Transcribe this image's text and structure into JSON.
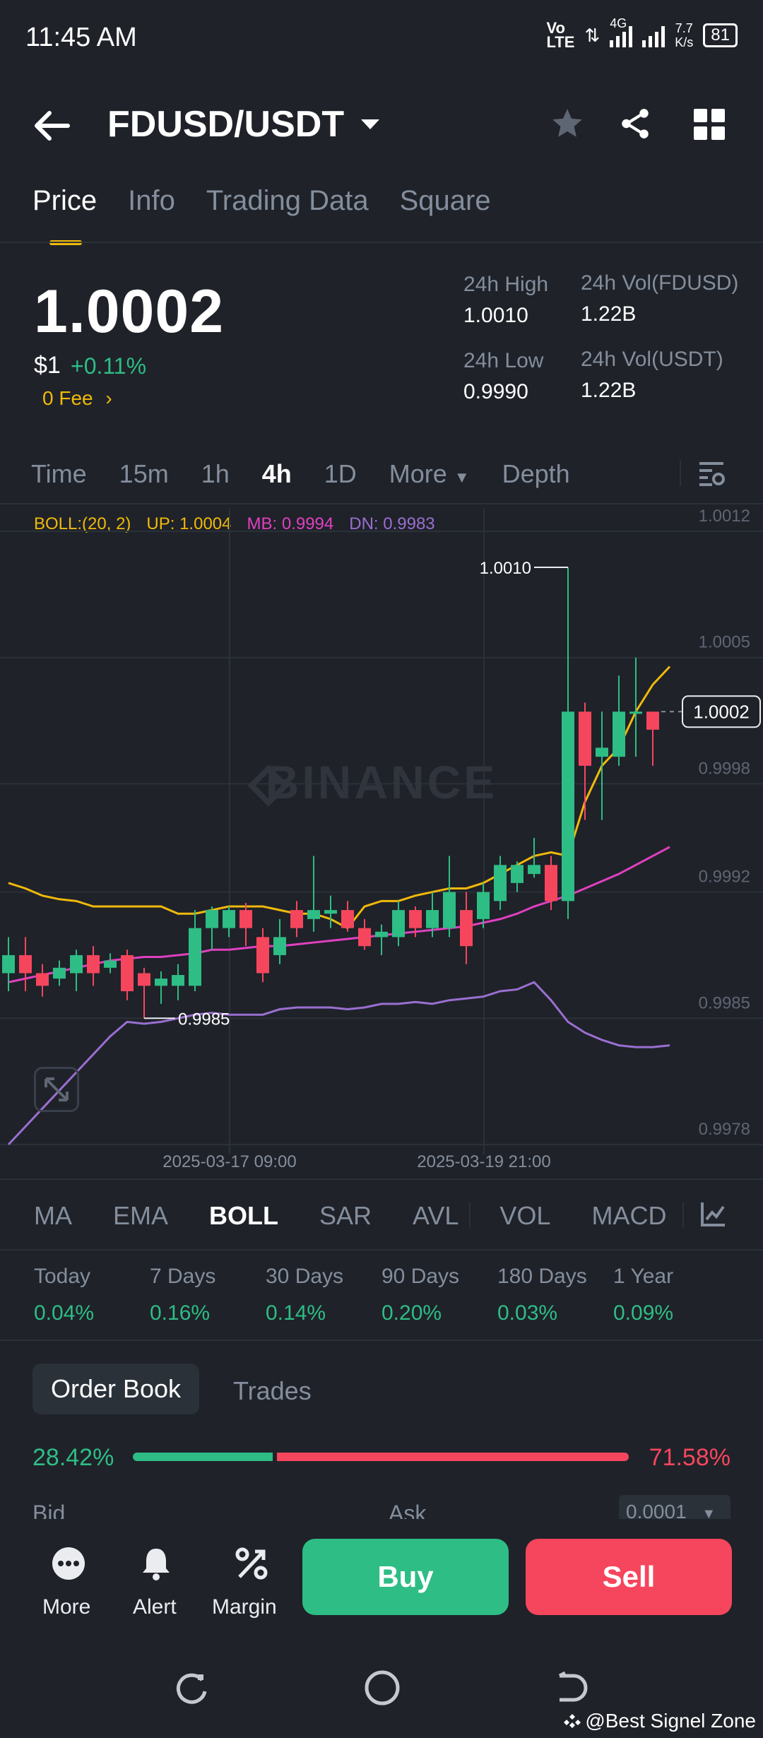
{
  "status_bar": {
    "time": "11:45 AM",
    "network": "Vo LTE",
    "net_type": "4G",
    "speed_value": "7.7",
    "speed_unit": "K/s",
    "battery": "81"
  },
  "header": {
    "pair": "FDUSD/USDT"
  },
  "tabs": [
    "Price",
    "Info",
    "Trading Data",
    "Square"
  ],
  "price_block": {
    "last": "1.0002",
    "usd": "$1",
    "change": "+0.11%",
    "fee": "0 Fee",
    "high_label": "24h High",
    "high": "1.0010",
    "low_label": "24h Low",
    "low": "0.9990",
    "vol_base_label": "24h Vol(FDUSD)",
    "vol_base": "1.22B",
    "vol_quote_label": "24h Vol(USDT)",
    "vol_quote": "1.22B"
  },
  "intervals": {
    "items": [
      "Time",
      "15m",
      "1h",
      "4h",
      "1D",
      "More",
      "Depth"
    ],
    "active": "4h"
  },
  "boll_legend": {
    "name": "BOLL:(20, 2)",
    "up": "UP: 1.0004",
    "mb": "MB: 0.9994",
    "dn": "DN: 0.9983"
  },
  "chart_data": {
    "type": "candlestick",
    "y_ticks": [
      "1.0012",
      "1.0005",
      "0.9998",
      "0.9992",
      "0.9985",
      "0.9978"
    ],
    "ylim": [
      0.9978,
      1.0012
    ],
    "x_ticks": [
      "2025-03-17 09:00",
      "2025-03-19 21:00"
    ],
    "current_price_tag": "1.0002",
    "high_marker": "1.0010",
    "low_marker": "0.9985",
    "watermark": "BINANCE",
    "candles": [
      {
        "o": 0.99875,
        "c": 0.99885,
        "h": 0.99895,
        "l": 0.99865
      },
      {
        "o": 0.99885,
        "c": 0.99875,
        "h": 0.99895,
        "l": 0.99865
      },
      {
        "o": 0.99875,
        "c": 0.99868,
        "h": 0.9988,
        "l": 0.99862
      },
      {
        "o": 0.99872,
        "c": 0.99878,
        "h": 0.99882,
        "l": 0.99868
      },
      {
        "o": 0.99875,
        "c": 0.99885,
        "h": 0.99888,
        "l": 0.99865
      },
      {
        "o": 0.99885,
        "c": 0.99875,
        "h": 0.9989,
        "l": 0.99868
      },
      {
        "o": 0.99878,
        "c": 0.99882,
        "h": 0.99886,
        "l": 0.99875
      },
      {
        "o": 0.99885,
        "c": 0.99865,
        "h": 0.99888,
        "l": 0.9986
      },
      {
        "o": 0.99875,
        "c": 0.99868,
        "h": 0.99878,
        "l": 0.9985
      },
      {
        "o": 0.99868,
        "c": 0.99872,
        "h": 0.99876,
        "l": 0.99858
      },
      {
        "o": 0.99868,
        "c": 0.99874,
        "h": 0.9988,
        "l": 0.9986
      },
      {
        "o": 0.99868,
        "c": 0.999,
        "h": 0.9991,
        "l": 0.99865
      },
      {
        "o": 0.999,
        "c": 0.9991,
        "h": 0.99912,
        "l": 0.99888
      },
      {
        "o": 0.999,
        "c": 0.9991,
        "h": 0.99912,
        "l": 0.99895
      },
      {
        "o": 0.9991,
        "c": 0.999,
        "h": 0.99914,
        "l": 0.9989
      },
      {
        "o": 0.99895,
        "c": 0.99875,
        "h": 0.999,
        "l": 0.9987
      },
      {
        "o": 0.99885,
        "c": 0.99895,
        "h": 0.99905,
        "l": 0.9988
      },
      {
        "o": 0.9991,
        "c": 0.999,
        "h": 0.99915,
        "l": 0.99895
      },
      {
        "o": 0.99905,
        "c": 0.9991,
        "h": 0.9994,
        "l": 0.99898
      },
      {
        "o": 0.99908,
        "c": 0.9991,
        "h": 0.99918,
        "l": 0.999
      },
      {
        "o": 0.9991,
        "c": 0.999,
        "h": 0.99915,
        "l": 0.99898
      },
      {
        "o": 0.999,
        "c": 0.9989,
        "h": 0.99905,
        "l": 0.99888
      },
      {
        "o": 0.99895,
        "c": 0.99898,
        "h": 0.99902,
        "l": 0.99885
      },
      {
        "o": 0.99895,
        "c": 0.9991,
        "h": 0.99915,
        "l": 0.9989
      },
      {
        "o": 0.9991,
        "c": 0.999,
        "h": 0.99912,
        "l": 0.99895
      },
      {
        "o": 0.999,
        "c": 0.9991,
        "h": 0.9992,
        "l": 0.99895
      },
      {
        "o": 0.999,
        "c": 0.9992,
        "h": 0.9994,
        "l": 0.99895
      },
      {
        "o": 0.9991,
        "c": 0.9989,
        "h": 0.9992,
        "l": 0.9988
      },
      {
        "o": 0.99905,
        "c": 0.9992,
        "h": 0.99925,
        "l": 0.999
      },
      {
        "o": 0.99915,
        "c": 0.99935,
        "h": 0.9994,
        "l": 0.9991
      },
      {
        "o": 0.99925,
        "c": 0.99935,
        "h": 0.99937,
        "l": 0.9992
      },
      {
        "o": 0.9993,
        "c": 0.99935,
        "h": 0.9995,
        "l": 0.99928
      },
      {
        "o": 0.99935,
        "c": 0.99915,
        "h": 0.9994,
        "l": 0.9991
      },
      {
        "o": 0.99915,
        "c": 1.0002,
        "h": 1.001,
        "l": 0.99905
      },
      {
        "o": 1.0002,
        "c": 0.9999,
        "h": 1.00025,
        "l": 0.9996
      },
      {
        "o": 0.99995,
        "c": 1.0,
        "h": 1.0002,
        "l": 0.9996
      },
      {
        "o": 0.99995,
        "c": 1.0002,
        "h": 1.0004,
        "l": 0.9999
      },
      {
        "o": 1.0002,
        "c": 1.0002,
        "h": 1.0005,
        "l": 0.99995
      },
      {
        "o": 1.0002,
        "c": 1.0001,
        "h": 1.0002,
        "l": 0.9999
      }
    ],
    "boll_up": [
      0.99925,
      0.99922,
      0.99918,
      0.99916,
      0.99915,
      0.99912,
      0.99912,
      0.99912,
      0.99912,
      0.99912,
      0.99908,
      0.99908,
      0.9991,
      0.99912,
      0.99912,
      0.99912,
      0.9991,
      0.99908,
      0.99908,
      0.99905,
      0.999,
      0.99912,
      0.99915,
      0.99915,
      0.99918,
      0.9992,
      0.99922,
      0.99922,
      0.99925,
      0.9993,
      0.99935,
      0.9994,
      0.99942,
      0.9994,
      0.9997,
      0.9999,
      1.0,
      1.0002,
      1.00035,
      1.00045
    ],
    "boll_mid": [
      0.9987,
      0.99872,
      0.99874,
      0.99876,
      0.99878,
      0.9988,
      0.99882,
      0.99883,
      0.99884,
      0.99884,
      0.99885,
      0.99886,
      0.99888,
      0.99888,
      0.99889,
      0.9989,
      0.9989,
      0.99891,
      0.99892,
      0.99893,
      0.99894,
      0.99895,
      0.99896,
      0.99897,
      0.99898,
      0.99899,
      0.999,
      0.99901,
      0.99903,
      0.99905,
      0.99908,
      0.99912,
      0.99915,
      0.99918,
      0.99922,
      0.99926,
      0.9993,
      0.99935,
      0.9994,
      0.99945
    ],
    "boll_dn": [
      0.9978,
      0.9979,
      0.998,
      0.9981,
      0.9982,
      0.9983,
      0.9984,
      0.99848,
      0.99847,
      0.99848,
      0.9985,
      0.99852,
      0.99853,
      0.99852,
      0.99852,
      0.99852,
      0.99855,
      0.99856,
      0.99856,
      0.99856,
      0.99855,
      0.99856,
      0.99858,
      0.99858,
      0.99859,
      0.99858,
      0.9986,
      0.99861,
      0.99862,
      0.99865,
      0.99866,
      0.9987,
      0.9986,
      0.99848,
      0.99842,
      0.99838,
      0.99835,
      0.99834,
      0.99834,
      0.99835
    ]
  },
  "indicators": {
    "items": [
      "MA",
      "EMA",
      "BOLL",
      "SAR",
      "AVL",
      "VOL",
      "MACD"
    ],
    "active": "BOLL"
  },
  "performance": [
    {
      "label": "Today",
      "value": "0.04%"
    },
    {
      "label": "7 Days",
      "value": "0.16%"
    },
    {
      "label": "30 Days",
      "value": "0.14%"
    },
    {
      "label": "90 Days",
      "value": "0.20%"
    },
    {
      "label": "180 Days",
      "value": "0.03%"
    },
    {
      "label": "1 Year",
      "value": "0.09%"
    }
  ],
  "order_book": {
    "tab_active": "Order Book",
    "tab_other": "Trades",
    "bid_pct": "28.42%",
    "ask_pct": "71.58%",
    "bid_ratio": 0.2842,
    "bid_label": "Bid",
    "ask_label": "Ask",
    "tick": "0.0001"
  },
  "actions": {
    "more": "More",
    "alert": "Alert",
    "margin": "Margin",
    "buy": "Buy",
    "sell": "Sell"
  },
  "footer_watermark": "@Best Signel Zone",
  "colors": {
    "up": "#2ebd85",
    "down": "#f6465d",
    "accent": "#f0b90b",
    "boll_mid": "#e040c0",
    "boll_dn": "#9a6fd1"
  }
}
